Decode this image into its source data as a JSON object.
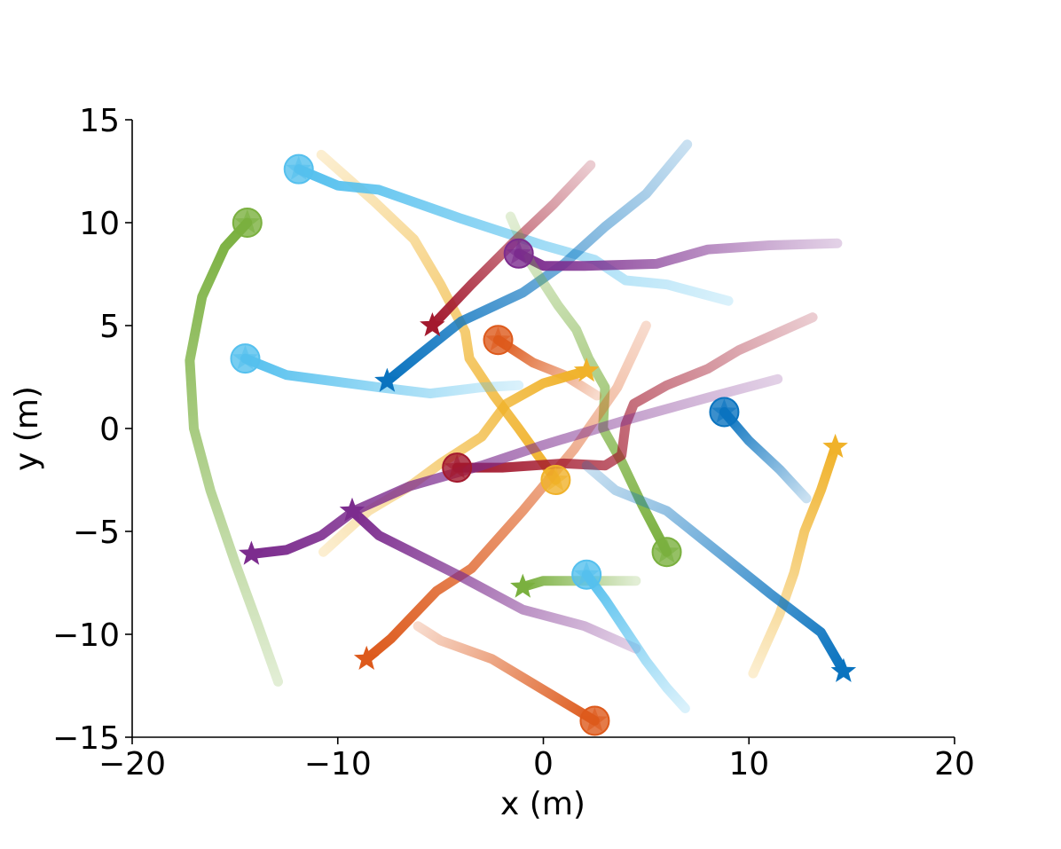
{
  "chart_data": {
    "type": "line",
    "title": "",
    "xlabel": "x (m)",
    "ylabel": "y (m)",
    "xlim": [
      -20,
      20
    ],
    "ylim": [
      -15,
      15
    ],
    "xticks": [
      -20,
      -10,
      0,
      10,
      20
    ],
    "yticks": [
      -15,
      -10,
      -5,
      0,
      5,
      10,
      15
    ],
    "xtick_labels": [
      "−20",
      "−10",
      "0",
      "10",
      "20"
    ],
    "ytick_labels": [
      "−15",
      "−10",
      "−5",
      "0",
      "5",
      "10",
      "15"
    ],
    "grid": false,
    "legend": "none",
    "series": [
      {
        "color": "#7ab03f",
        "points": [
          [
            -14.4,
            10.0
          ],
          [
            -15.5,
            8.8
          ],
          [
            -16.6,
            6.4
          ],
          [
            -17.2,
            3.3
          ],
          [
            -17.0,
            0
          ],
          [
            -16.2,
            -3.0
          ],
          [
            -15.0,
            -6.5
          ],
          [
            -13.9,
            -9.5
          ],
          [
            -12.9,
            -12.3
          ]
        ],
        "start_marker": "circle",
        "end_marker": "none"
      },
      {
        "color": "#f0b22a",
        "points": [
          [
            -10.8,
            13.3
          ],
          [
            -8.2,
            11.0
          ],
          [
            -6.3,
            9.2
          ],
          [
            -5.0,
            7.0
          ],
          [
            -3.8,
            4.7
          ],
          [
            -3.6,
            3.4
          ],
          [
            -2.4,
            1.6
          ],
          [
            -1.2,
            0
          ],
          [
            0.6,
            -2.5
          ]
        ],
        "start_marker": "none",
        "end_marker": "circle"
      },
      {
        "color": "#55c0ee",
        "points": [
          [
            -11.9,
            12.6
          ],
          [
            -10.0,
            11.8
          ],
          [
            -8.0,
            11.6
          ],
          [
            -4.0,
            10.2
          ],
          [
            0,
            8.9
          ],
          [
            2.5,
            8.2
          ],
          [
            4.0,
            7.2
          ],
          [
            6.0,
            7.0
          ],
          [
            9.0,
            6.2
          ]
        ],
        "start_marker": "circle",
        "end_marker": "none"
      },
      {
        "color": "#0a73bf",
        "points": [
          [
            -7.6,
            2.3
          ],
          [
            -6.0,
            3.6
          ],
          [
            -4.0,
            5.2
          ],
          [
            -1.0,
            6.6
          ],
          [
            1.0,
            8.0
          ],
          [
            3.0,
            9.8
          ],
          [
            5.0,
            11.4
          ],
          [
            7.0,
            13.8
          ]
        ],
        "start_marker": "star",
        "end_marker": "none"
      },
      {
        "color": "#a3192e",
        "points": [
          [
            -5.4,
            5.0
          ],
          [
            -3.5,
            7.0
          ],
          [
            -1.5,
            9.0
          ],
          [
            0.5,
            10.9
          ],
          [
            2.3,
            12.8
          ]
        ],
        "start_marker": "star",
        "end_marker": "none"
      },
      {
        "color": "#7c2c8e",
        "points": [
          [
            -1.2,
            8.5
          ],
          [
            0,
            7.9
          ],
          [
            2,
            7.9
          ],
          [
            5.5,
            8.0
          ],
          [
            8.0,
            8.7
          ],
          [
            11.0,
            8.9
          ],
          [
            14.3,
            9.0
          ]
        ],
        "start_marker": "circle",
        "end_marker": "none"
      },
      {
        "color": "#7ab03f",
        "points": [
          [
            -1.6,
            10.3
          ],
          [
            -0.6,
            8.0
          ],
          [
            0.7,
            6.0
          ],
          [
            1.6,
            4.8
          ],
          [
            2.2,
            3.4
          ],
          [
            3.0,
            2.0
          ],
          [
            2.9,
            0
          ],
          [
            3.8,
            -1.6
          ],
          [
            4.8,
            -3.7
          ],
          [
            6.0,
            -6.0
          ]
        ],
        "start_marker": "none",
        "end_marker": "circle"
      },
      {
        "color": "#55c0ee",
        "points": [
          [
            -14.5,
            3.4
          ],
          [
            -12.5,
            2.6
          ],
          [
            -8.0,
            2.0
          ],
          [
            -5.5,
            1.7
          ],
          [
            -3.0,
            2.0
          ],
          [
            -1.2,
            2.1
          ]
        ],
        "start_marker": "circle",
        "end_marker": "none"
      },
      {
        "color": "#dd5a1c",
        "points": [
          [
            -2.2,
            4.3
          ],
          [
            -0.5,
            3.2
          ],
          [
            1.0,
            2.6
          ],
          [
            2.6,
            1.6
          ]
        ],
        "start_marker": "circle",
        "end_marker": "none"
      },
      {
        "color": "#f0b22a",
        "points": [
          [
            -10.7,
            -6.0
          ],
          [
            -8.5,
            -4.0
          ],
          [
            -6.5,
            -2.8
          ],
          [
            -5.0,
            -1.7
          ],
          [
            -3.0,
            -0.4
          ],
          [
            -1.8,
            1.2
          ],
          [
            0,
            2.2
          ],
          [
            2.1,
            2.8
          ]
        ],
        "start_marker": "none",
        "end_marker": "star"
      },
      {
        "color": "#dd5a1c",
        "points": [
          [
            -8.6,
            -11.2
          ],
          [
            -7.4,
            -10.2
          ],
          [
            -5.2,
            -7.9
          ],
          [
            -3.5,
            -6.8
          ],
          [
            -1.0,
            -4.0
          ],
          [
            1.5,
            -1.0
          ],
          [
            3.6,
            2.0
          ],
          [
            5.0,
            5.0
          ]
        ],
        "start_marker": "star",
        "end_marker": "none"
      },
      {
        "color": "#a3192e",
        "points": [
          [
            -4.2,
            -1.9
          ],
          [
            -2.0,
            -1.9
          ],
          [
            1.0,
            -1.7
          ],
          [
            3.0,
            -1.8
          ],
          [
            3.8,
            -1.3
          ],
          [
            4.0,
            0.2
          ],
          [
            4.4,
            1.2
          ],
          [
            6.0,
            2.1
          ],
          [
            8.0,
            2.9
          ],
          [
            9.5,
            3.8
          ],
          [
            13.1,
            5.4
          ]
        ],
        "start_marker": "circle",
        "end_marker": "none"
      },
      {
        "color": "#7c2c8e",
        "points": [
          [
            -14.2,
            -6.1
          ],
          [
            -12.5,
            -5.9
          ],
          [
            -10.8,
            -5.2
          ],
          [
            -9.2,
            -4.0
          ],
          [
            -6.5,
            -2.8
          ],
          [
            -3.0,
            -1.8
          ],
          [
            0,
            -0.8
          ],
          [
            4.0,
            0.4
          ],
          [
            8.0,
            1.5
          ],
          [
            11.4,
            2.4
          ]
        ],
        "start_marker": "star",
        "end_marker": "none"
      },
      {
        "color": "#7c2c8e",
        "points": [
          [
            -9.3,
            -4.0
          ],
          [
            -8.0,
            -5.2
          ],
          [
            -4.0,
            -7.2
          ],
          [
            -1.0,
            -8.8
          ],
          [
            2.0,
            -9.6
          ],
          [
            4.5,
            -10.7
          ]
        ],
        "start_marker": "star",
        "end_marker": "none"
      },
      {
        "color": "#0a73bf",
        "points": [
          [
            8.8,
            0.8
          ],
          [
            10.0,
            -0.6
          ],
          [
            11.5,
            -2.0
          ],
          [
            12.8,
            -3.4
          ]
        ],
        "start_marker": "circle",
        "end_marker": "none"
      },
      {
        "color": "#f0b22a",
        "points": [
          [
            14.2,
            -0.9
          ],
          [
            13.5,
            -3.0
          ],
          [
            12.7,
            -5.0
          ],
          [
            12.2,
            -7.0
          ],
          [
            11.5,
            -9.0
          ],
          [
            10.2,
            -11.9
          ]
        ],
        "start_marker": "star",
        "end_marker": "none"
      },
      {
        "color": "#0a73bf",
        "points": [
          [
            2.1,
            -1.8
          ],
          [
            3.5,
            -3.0
          ],
          [
            6.0,
            -4.0
          ],
          [
            8.5,
            -6.0
          ],
          [
            11.0,
            -8.0
          ],
          [
            13.5,
            -9.9
          ],
          [
            14.6,
            -11.8
          ]
        ],
        "start_marker": "none",
        "end_marker": "star"
      },
      {
        "color": "#7ab03f",
        "points": [
          [
            -1.0,
            -7.7
          ],
          [
            0,
            -7.4
          ],
          [
            1.5,
            -7.4
          ],
          [
            3.0,
            -7.4
          ],
          [
            4.5,
            -7.4
          ]
        ],
        "start_marker": "star",
        "end_marker": "none"
      },
      {
        "color": "#55c0ee",
        "points": [
          [
            2.1,
            -7.1
          ],
          [
            3.0,
            -8.3
          ],
          [
            4.0,
            -9.8
          ],
          [
            5.0,
            -11.3
          ],
          [
            6.0,
            -12.6
          ],
          [
            6.9,
            -13.6
          ]
        ],
        "start_marker": "circle",
        "end_marker": "none"
      },
      {
        "color": "#dd5a1c",
        "points": [
          [
            -6.1,
            -9.6
          ],
          [
            -5.0,
            -10.3
          ],
          [
            -2.5,
            -11.2
          ],
          [
            0,
            -12.7
          ],
          [
            2.5,
            -14.2
          ]
        ],
        "start_marker": "none",
        "end_marker": "circle"
      }
    ]
  }
}
